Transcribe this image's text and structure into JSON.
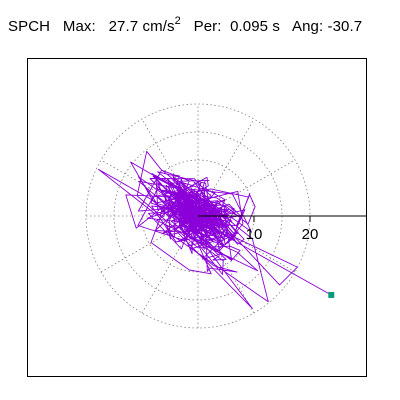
{
  "header": {
    "station": "SPCH",
    "max_label": "Max:",
    "max_value": "27.7",
    "max_unit": "cm/s",
    "max_unit_exp": "2",
    "per_label": "Per:",
    "per_value": "0.095 s",
    "ang_label": "Ang:",
    "ang_value": "-30.7"
  },
  "chart_data": {
    "type": "scatter",
    "title": "",
    "polar_grid": true,
    "radial_ticks": [
      10,
      20
    ],
    "radial_tick_labels": [
      "10",
      "20"
    ],
    "axis_extent": 30,
    "peak_point": {
      "x": 23.8,
      "y": -14.1
    },
    "colors": {
      "trace": "#8b00d9",
      "peak_marker": "#0a9c7a",
      "grid": "#808080",
      "frame": "#000000"
    },
    "series": [
      {
        "values": []
      }
    ]
  }
}
